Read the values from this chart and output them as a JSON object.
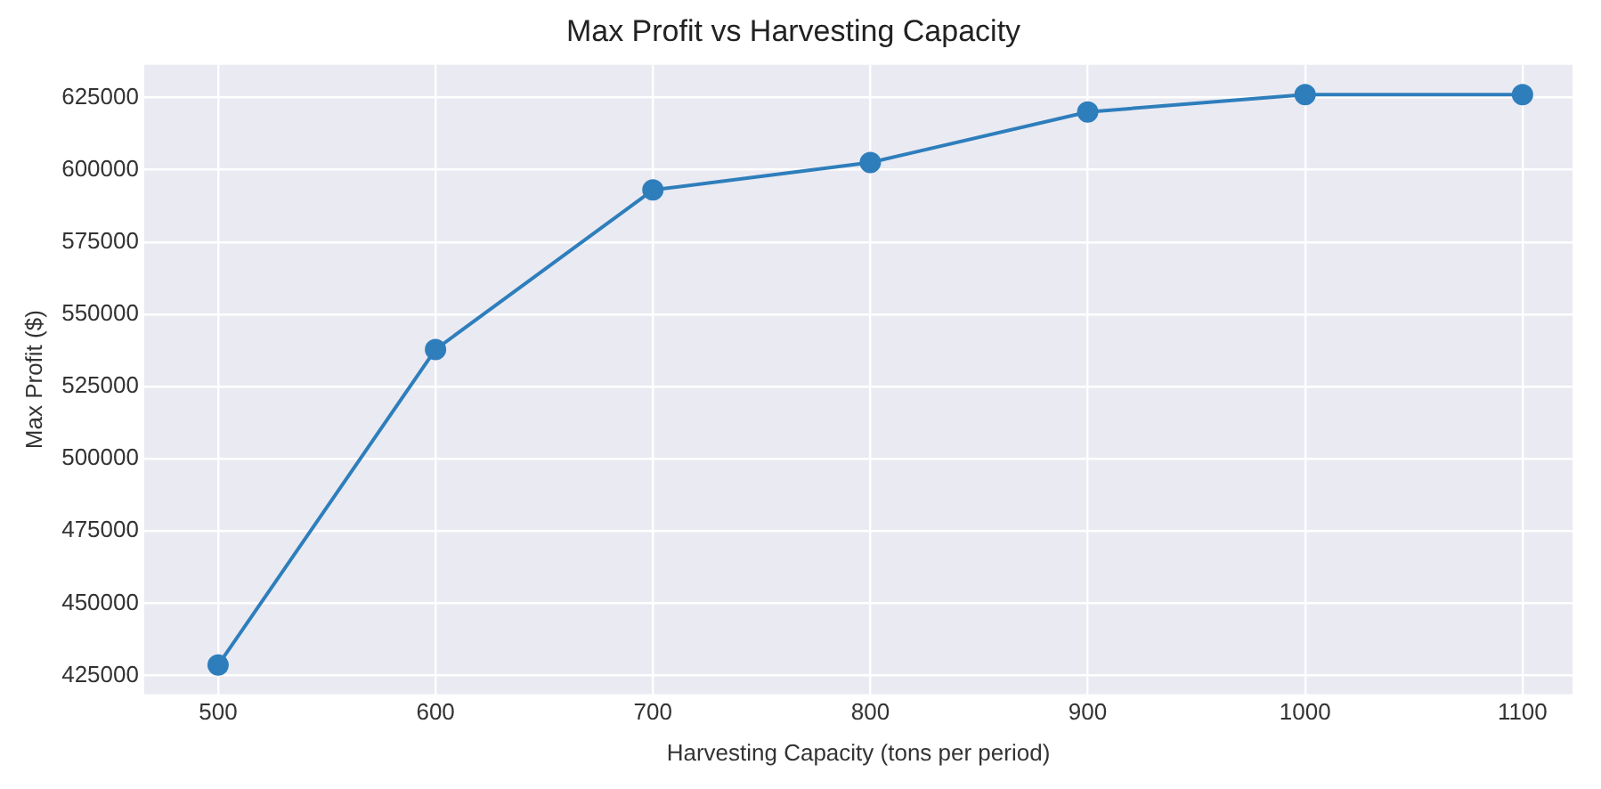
{
  "chart_data": {
    "type": "line",
    "title": "Max Profit vs Harvesting Capacity",
    "xlabel": "Harvesting Capacity (tons per period)",
    "ylabel": "Max Profit ($)",
    "x": [
      500,
      600,
      700,
      800,
      900,
      1000,
      1100
    ],
    "series": [
      {
        "color": "#2e7ebc",
        "values": [
          428600,
          537800,
          593000,
          602500,
          620000,
          626000,
          626000
        ]
      }
    ],
    "xlim": [
      466,
      1123
    ],
    "xticks": [
      500,
      600,
      700,
      800,
      900,
      1000,
      1100
    ],
    "ylim": [
      418500,
      636300
    ],
    "yticks": [
      425000,
      450000,
      475000,
      500000,
      525000,
      550000,
      575000,
      600000,
      625000
    ],
    "grid": true,
    "marker": "circle",
    "line_style": "solid",
    "legend": false
  }
}
